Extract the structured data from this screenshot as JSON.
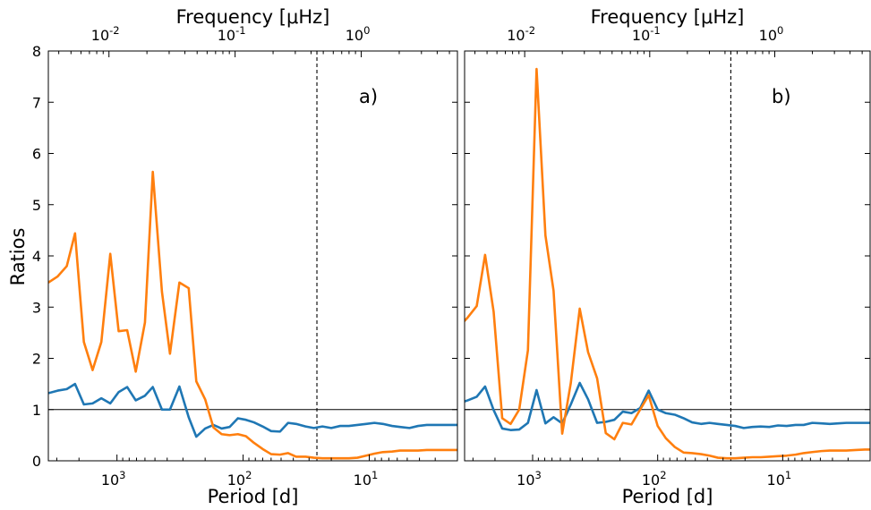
{
  "figure": {
    "ylabel": "Ratios",
    "xlabel": "Period [d]",
    "top_xlabel": "Frequency [μHz]"
  },
  "chart_data": [
    {
      "type": "line",
      "panel_label": "a)",
      "x_axis": {
        "label": "Period [d]",
        "scale": "log",
        "reversed": true,
        "lim": [
          3500,
          2
        ],
        "ticks": [
          1000,
          100,
          10
        ],
        "tick_labels": [
          "10^3",
          "10^2",
          "10^1"
        ]
      },
      "top_axis": {
        "label": "Frequency [μHz]",
        "scale": "log",
        "ticks": [
          0.01,
          0.1,
          1
        ],
        "tick_labels": [
          "10^-2",
          "10^-1",
          "10^0"
        ]
      },
      "y_axis": {
        "label": "Ratios",
        "lim": [
          0,
          8
        ],
        "ticks": [
          0,
          1,
          2,
          3,
          4,
          5,
          6,
          7,
          8
        ]
      },
      "reference_lines": {
        "horizontal_y": 1,
        "vertical_x_dashed": 26
      },
      "series": [
        {
          "color": "#1f77b4",
          "x": [
            3500,
            2950,
            2500,
            2150,
            1830,
            1560,
            1330,
            1130,
            970,
            830,
            710,
            600,
            520,
            440,
            380,
            320,
            270,
            235,
            200,
            172,
            148,
            128,
            110,
            95,
            82,
            70,
            60,
            51,
            44,
            38,
            32,
            27.5,
            23.5,
            20,
            17,
            14.5,
            12.4,
            10.6,
            9.1,
            7.8,
            6.6,
            5.7,
            4.8,
            4.1,
            3.5,
            3,
            2.6,
            2.2,
            2
          ],
          "y": [
            1.32,
            1.37,
            1.4,
            1.5,
            1.1,
            1.12,
            1.22,
            1.12,
            1.34,
            1.44,
            1.18,
            1.27,
            1.44,
            1.0,
            1.0,
            1.45,
            0.85,
            0.47,
            0.63,
            0.7,
            0.63,
            0.66,
            0.83,
            0.8,
            0.75,
            0.67,
            0.58,
            0.57,
            0.74,
            0.72,
            0.67,
            0.64,
            0.67,
            0.64,
            0.68,
            0.68,
            0.7,
            0.72,
            0.74,
            0.72,
            0.68,
            0.66,
            0.64,
            0.68,
            0.7,
            0.7,
            0.7,
            0.7,
            0.7
          ]
        },
        {
          "color": "#ff7f0e",
          "x": [
            3500,
            2950,
            2500,
            2150,
            1830,
            1560,
            1330,
            1130,
            970,
            830,
            710,
            600,
            520,
            440,
            380,
            320,
            270,
            235,
            200,
            172,
            148,
            128,
            110,
            95,
            82,
            70,
            60,
            51,
            44,
            38,
            32,
            27.5,
            23.5,
            20,
            17,
            14.5,
            12.4,
            10.6,
            9.1,
            7.8,
            6.6,
            5.7,
            4.8,
            4.1,
            3.5,
            3,
            2.6,
            2.2,
            2
          ],
          "y": [
            3.48,
            3.6,
            3.8,
            4.44,
            2.32,
            1.77,
            2.32,
            4.04,
            2.53,
            2.55,
            1.74,
            2.7,
            5.64,
            3.3,
            2.09,
            3.48,
            3.37,
            1.55,
            1.2,
            0.65,
            0.52,
            0.5,
            0.52,
            0.48,
            0.35,
            0.23,
            0.13,
            0.12,
            0.15,
            0.08,
            0.08,
            0.06,
            0.05,
            0.05,
            0.05,
            0.05,
            0.06,
            0.1,
            0.14,
            0.17,
            0.18,
            0.2,
            0.2,
            0.2,
            0.21,
            0.21,
            0.21,
            0.21,
            0.21
          ]
        }
      ]
    },
    {
      "type": "line",
      "panel_label": "b)",
      "x_axis": {
        "label": "Period [d]",
        "scale": "log",
        "reversed": true,
        "lim": [
          3500,
          2
        ],
        "ticks": [
          1000,
          100,
          10
        ],
        "tick_labels": [
          "10^3",
          "10^2",
          "10^1"
        ]
      },
      "top_axis": {
        "label": "Frequency [μHz]",
        "scale": "log",
        "ticks": [
          0.01,
          0.1,
          1
        ],
        "tick_labels": [
          "10^-2",
          "10^-1",
          "10^0"
        ]
      },
      "y_axis": {
        "lim": [
          0,
          8
        ],
        "ticks": [
          0,
          1,
          2,
          3,
          4,
          5,
          6,
          7,
          8
        ]
      },
      "reference_lines": {
        "horizontal_y": 1,
        "vertical_x_dashed": 26
      },
      "series": [
        {
          "color": "#1f77b4",
          "x": [
            3900,
            3300,
            2800,
            2400,
            2050,
            1750,
            1500,
            1280,
            1090,
            930,
            790,
            680,
            580,
            495,
            420,
            360,
            305,
            260,
            222,
            190,
            162,
            138,
            118,
            100,
            86,
            73,
            62,
            53,
            45,
            38.5,
            33,
            28,
            24,
            20.5,
            17.5,
            15,
            12.8,
            10.9,
            9.3,
            7.9,
            6.8,
            5.8,
            4.9,
            4.2,
            3.6,
            3.1,
            2.6,
            2.2,
            2
          ],
          "y": [
            1.12,
            1.18,
            1.25,
            1.45,
            0.99,
            0.63,
            0.6,
            0.61,
            0.74,
            1.38,
            0.73,
            0.85,
            0.73,
            1.1,
            1.52,
            1.2,
            0.74,
            0.76,
            0.8,
            0.96,
            0.93,
            1.03,
            1.37,
            1.0,
            0.93,
            0.9,
            0.83,
            0.75,
            0.72,
            0.74,
            0.72,
            0.7,
            0.68,
            0.64,
            0.66,
            0.67,
            0.66,
            0.69,
            0.68,
            0.7,
            0.7,
            0.74,
            0.73,
            0.72,
            0.73,
            0.74,
            0.74,
            0.74,
            0.74
          ]
        },
        {
          "color": "#ff7f0e",
          "x": [
            3900,
            3300,
            2800,
            2400,
            2050,
            1750,
            1500,
            1280,
            1090,
            930,
            790,
            680,
            580,
            495,
            420,
            360,
            305,
            260,
            222,
            190,
            162,
            138,
            118,
            100,
            86,
            73,
            62,
            53,
            45,
            38.5,
            33,
            28,
            24,
            20.5,
            17.5,
            15,
            12.8,
            10.9,
            9.3,
            7.9,
            6.8,
            5.8,
            4.9,
            4.2,
            3.6,
            3.1,
            2.6,
            2.2,
            2
          ],
          "y": [
            2.61,
            2.8,
            3.02,
            4.02,
            2.91,
            0.83,
            0.72,
            1.0,
            2.16,
            7.65,
            4.4,
            3.32,
            0.53,
            1.52,
            2.97,
            2.12,
            1.61,
            0.54,
            0.42,
            0.74,
            0.71,
            1.0,
            1.28,
            0.68,
            0.44,
            0.27,
            0.16,
            0.15,
            0.13,
            0.1,
            0.06,
            0.05,
            0.05,
            0.06,
            0.07,
            0.07,
            0.08,
            0.09,
            0.1,
            0.12,
            0.15,
            0.17,
            0.19,
            0.2,
            0.2,
            0.2,
            0.21,
            0.22,
            0.22
          ]
        }
      ]
    }
  ]
}
